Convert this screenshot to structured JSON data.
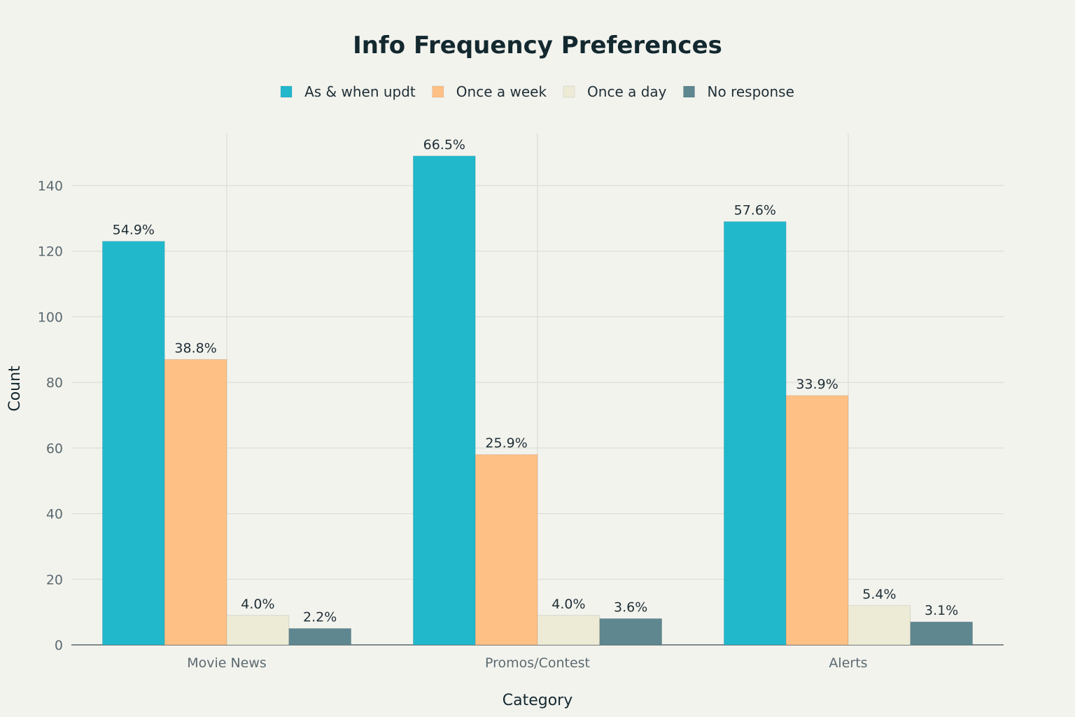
{
  "chart_data": {
    "type": "bar",
    "title": "Info Frequency Preferences",
    "xlabel": "Category",
    "ylabel": "Count",
    "ylim": [
      0,
      156
    ],
    "yticks": [
      0,
      20,
      40,
      60,
      80,
      100,
      120,
      140
    ],
    "grid": true,
    "legend_position": "top",
    "categories": [
      "Movie News",
      "Promos/Contest",
      "Alerts"
    ],
    "series": [
      {
        "name": "As & when updt",
        "color": "#21b8cc",
        "values": [
          123,
          149,
          129
        ],
        "labels": [
          "54.9%",
          "66.5%",
          "57.6%"
        ]
      },
      {
        "name": "Once a week",
        "color": "#ffc085",
        "values": [
          87,
          58,
          76
        ],
        "labels": [
          "38.8%",
          "25.9%",
          "33.9%"
        ]
      },
      {
        "name": "Once a day",
        "color": "#edebd6",
        "values": [
          9,
          9,
          12
        ],
        "labels": [
          "4.0%",
          "4.0%",
          "5.4%"
        ]
      },
      {
        "name": "No response",
        "color": "#5e8790",
        "values": [
          5,
          8,
          7
        ],
        "labels": [
          "2.2%",
          "3.6%",
          "3.1%"
        ]
      }
    ]
  }
}
